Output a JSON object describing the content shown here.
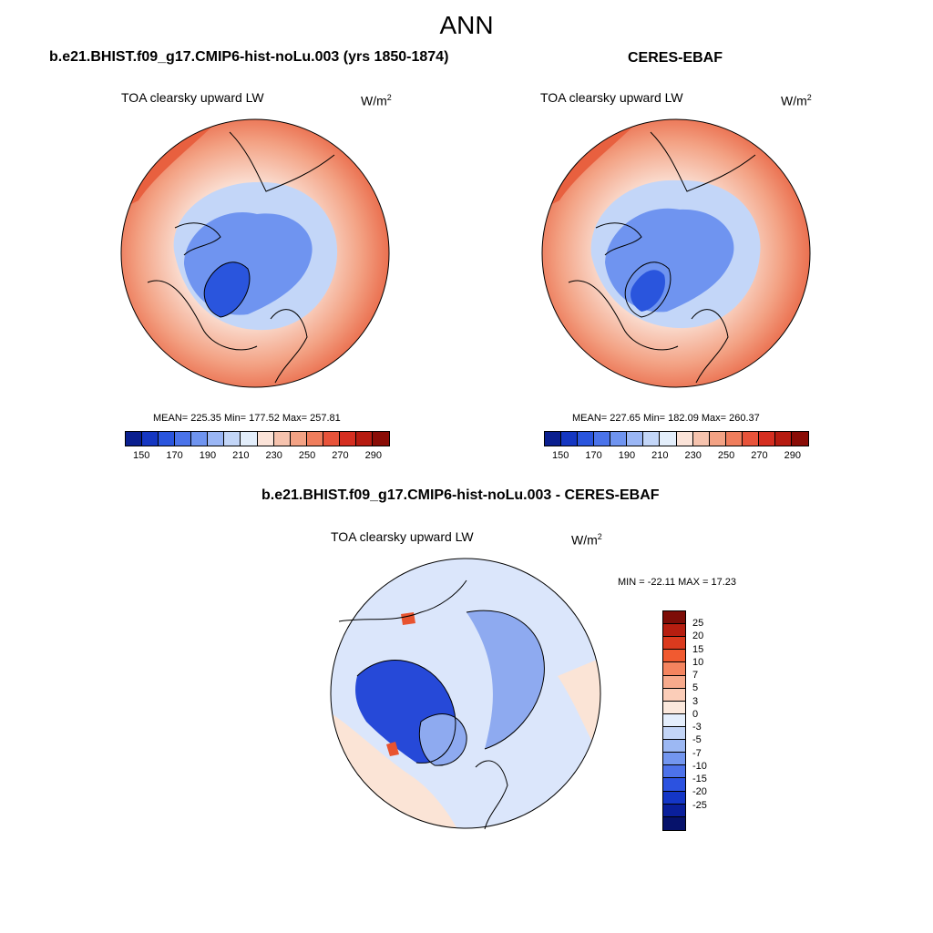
{
  "main_title": "ANN",
  "panels": [
    {
      "title": "b.e21.BHIST.f09_g17.CMIP6-hist-noLu.003 (yrs 1850-1874)",
      "variable": "TOA clearsky upward LW",
      "units_base": "W/m",
      "units_sup": "2",
      "stats": "MEAN= 225.35  Min= 177.52  Max= 257.81"
    },
    {
      "title": "CERES-EBAF",
      "variable": "TOA clearsky upward LW",
      "units_base": "W/m",
      "units_sup": "2",
      "stats": "MEAN= 227.65  Min= 182.09  Max= 260.37"
    },
    {
      "title": "b.e21.BHIST.f09_g17.CMIP6-hist-noLu.003 - CERES-EBAF",
      "variable": "TOA clearsky upward LW",
      "units_base": "W/m",
      "units_sup": "2",
      "stats": "MIN = -22.11 MAX =  17.23"
    }
  ],
  "abs_colorbar": {
    "colors": [
      "#0a1f8f",
      "#1537c2",
      "#2a55dd",
      "#4a73ea",
      "#6f94f0",
      "#9ab6f5",
      "#c3d6f8",
      "#e3eefb",
      "#fbe3d8",
      "#f6c3ae",
      "#f3a284",
      "#ef7d5c",
      "#e8533a",
      "#d52e20",
      "#b61b10",
      "#8a0c06"
    ],
    "tick_labels": [
      "150",
      "170",
      "190",
      "210",
      "230",
      "250",
      "270",
      "290"
    ]
  },
  "diff_colorbar": {
    "colors": [
      "#7d0d07",
      "#b61e10",
      "#db3a1e",
      "#f15a30",
      "#f4845f",
      "#f7aa8c",
      "#fbcdb8",
      "#fbe8dc",
      "#e4eefc",
      "#c3d5f7",
      "#9cb8f3",
      "#7396ef",
      "#4d72ea",
      "#2c52e0",
      "#1436c6",
      "#0a1f9b",
      "#06126b"
    ],
    "tick_labels": [
      "25",
      "20",
      "15",
      "10",
      "7",
      "5",
      "3",
      "0",
      "-3",
      "-5",
      "-7",
      "-10",
      "-15",
      "-20",
      "-25"
    ]
  },
  "map_colors": {
    "deep_blue": "#2a55dd",
    "mid_blue": "#6f94f0",
    "light_blue": "#c3d6f8",
    "pale": "#fbe3d8",
    "salmon": "#f3a284",
    "orange_red": "#e8603f",
    "diff_light_blue": "#dbe6fb",
    "diff_mid_blue": "#8eaaf0",
    "diff_deep_blue": "#2649d8",
    "diff_pale": "#fbe4d6",
    "diff_red": "#e8532f"
  }
}
